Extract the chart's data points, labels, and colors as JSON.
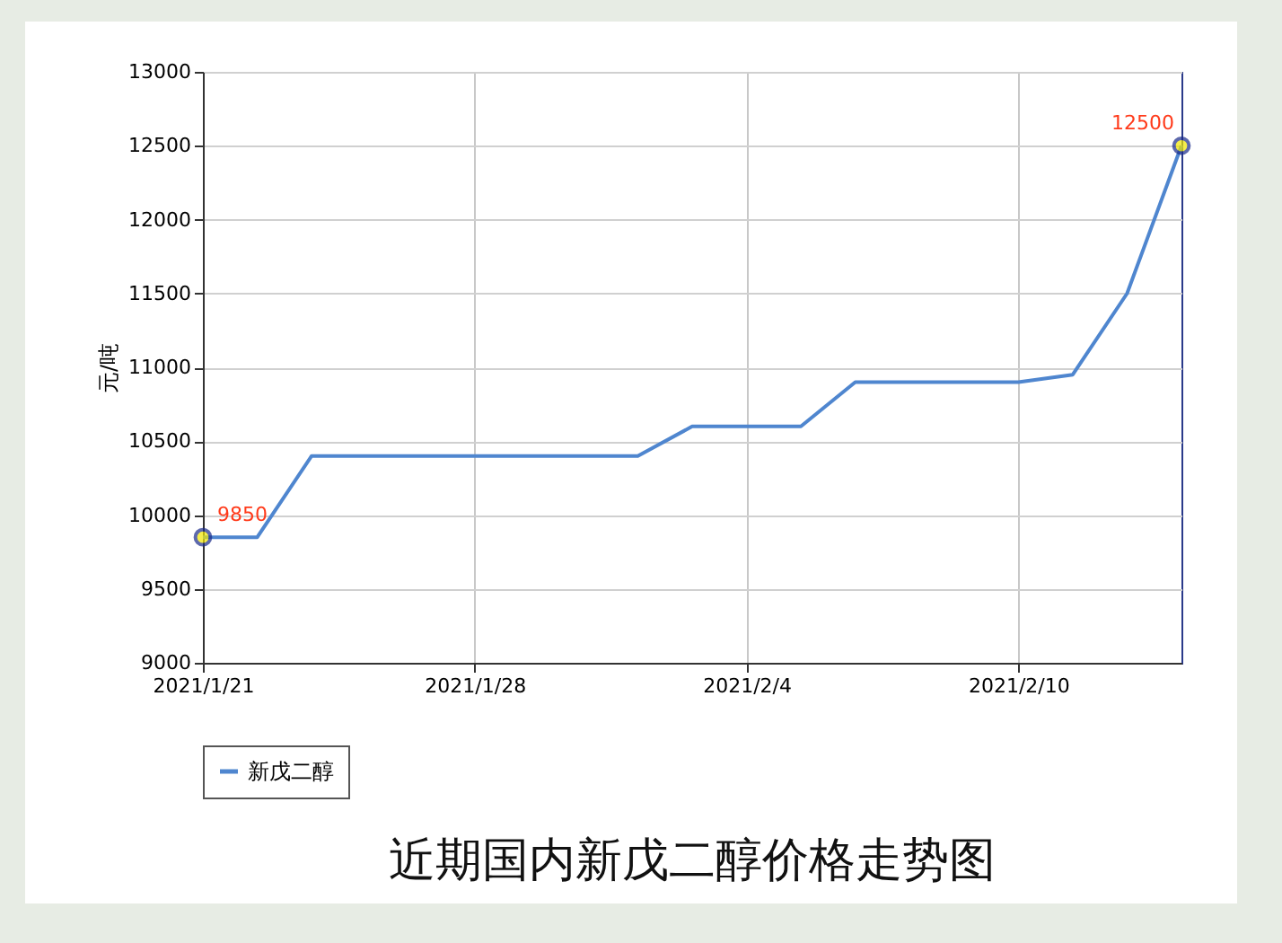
{
  "chart_data": {
    "type": "line",
    "title": "近期国内新戊二醇价格走势图",
    "ylabel": "元/吨",
    "categories": [
      "2021/1/21",
      null,
      null,
      null,
      null,
      "2021/1/28",
      null,
      null,
      null,
      null,
      "2021/2/4",
      null,
      null,
      null,
      null,
      "2021/2/10",
      null,
      null,
      null
    ],
    "series": [
      {
        "name": "新戊二醇",
        "color": "#4f86cf",
        "values": [
          9850,
          9850,
          10400,
          10400,
          10400,
          10400,
          10400,
          10400,
          10400,
          10600,
          10600,
          10600,
          10900,
          10900,
          10900,
          10900,
          10950,
          11500,
          12500
        ],
        "value_labels": [
          "9850",
          null,
          null,
          null,
          null,
          null,
          null,
          null,
          null,
          null,
          null,
          null,
          null,
          null,
          null,
          null,
          null,
          null,
          "12500"
        ]
      }
    ],
    "ylim": [
      9000,
      13000
    ],
    "yticks": [
      9000,
      9500,
      10000,
      10500,
      11000,
      11500,
      12000,
      12500,
      13000
    ],
    "grid": true,
    "legend": "bottom",
    "marker": "none",
    "line_style": "solid"
  }
}
